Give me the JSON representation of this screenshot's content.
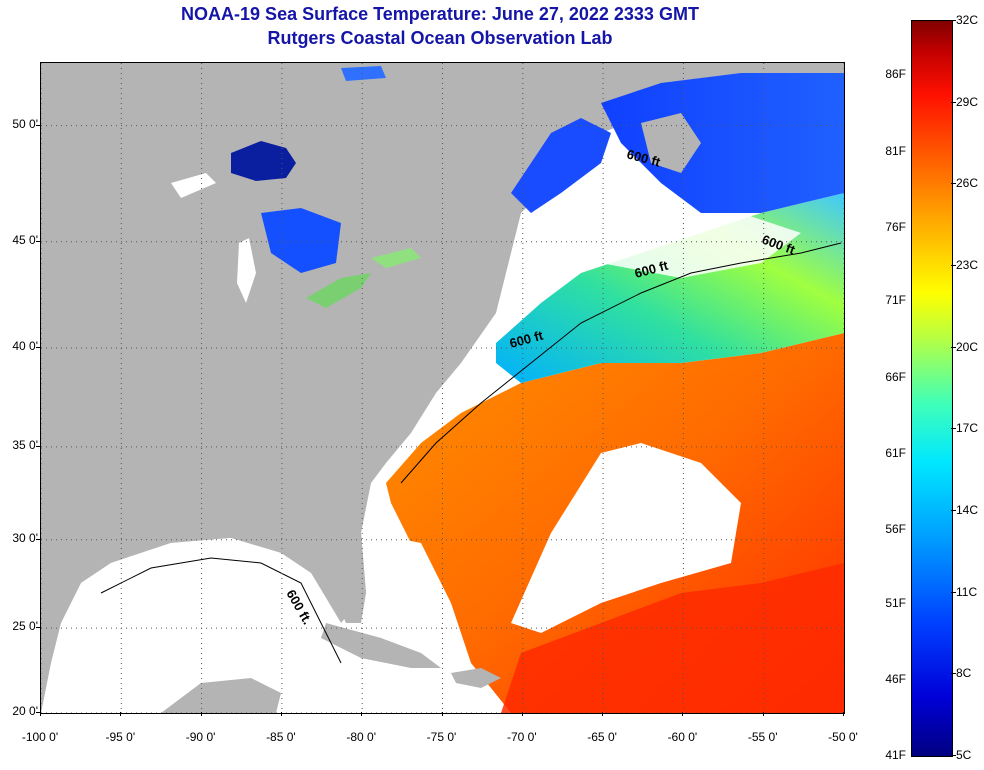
{
  "header": {
    "line1": "NOAA-19 Sea Surface Temperature:  June 27, 2022 2333 GMT",
    "line2": "Rutgers Coastal Ocean Observation Lab"
  },
  "map": {
    "lat_ticks": [
      {
        "label": "50 0'",
        "lat": 50
      },
      {
        "label": "45 0'",
        "lat": 45
      },
      {
        "label": "40 0'",
        "lat": 40
      },
      {
        "label": "35 0'",
        "lat": 35
      },
      {
        "label": "30 0'",
        "lat": 30
      },
      {
        "label": "25 0'",
        "lat": 25
      },
      {
        "label": "20 0'",
        "lat": 20
      }
    ],
    "lon_ticks": [
      {
        "label": "-100 0'",
        "lon": -100
      },
      {
        "label": "-95 0'",
        "lon": -95
      },
      {
        "label": "-90 0'",
        "lon": -90
      },
      {
        "label": "-85 0'",
        "lon": -85
      },
      {
        "label": "-80 0'",
        "lon": -80
      },
      {
        "label": "-75 0'",
        "lon": -75
      },
      {
        "label": "-70 0'",
        "lon": -70
      },
      {
        "label": "-65 0'",
        "lon": -65
      },
      {
        "label": "-60 0'",
        "lon": -60
      },
      {
        "label": "-55 0'",
        "lon": -55
      },
      {
        "label": "-50 0'",
        "lon": -50
      }
    ],
    "isobath_labels": [
      "600 ft",
      "600 ft",
      "600 ft",
      "600 ft",
      "600 ft."
    ],
    "colors": {
      "land": "#b4b4b4",
      "no_data": "#ffffff",
      "title": "#1515a8"
    }
  },
  "colorbar": {
    "fahrenheit": [
      {
        "label": "86F",
        "temp_c": 30.0
      },
      {
        "label": "81F",
        "temp_c": 27.2
      },
      {
        "label": "76F",
        "temp_c": 24.4
      },
      {
        "label": "71F",
        "temp_c": 21.7
      },
      {
        "label": "66F",
        "temp_c": 18.9
      },
      {
        "label": "61F",
        "temp_c": 16.1
      },
      {
        "label": "56F",
        "temp_c": 13.3
      },
      {
        "label": "51F",
        "temp_c": 10.6
      },
      {
        "label": "46F",
        "temp_c": 7.8
      },
      {
        "label": "41F",
        "temp_c": 5.0
      }
    ],
    "celsius": [
      {
        "label": "32C",
        "temp_c": 32
      },
      {
        "label": "29C",
        "temp_c": 29
      },
      {
        "label": "26C",
        "temp_c": 26
      },
      {
        "label": "23C",
        "temp_c": 23
      },
      {
        "label": "20C",
        "temp_c": 20
      },
      {
        "label": "17C",
        "temp_c": 17
      },
      {
        "label": "14C",
        "temp_c": 14
      },
      {
        "label": "11C",
        "temp_c": 11
      },
      {
        "label": "8C",
        "temp_c": 8
      },
      {
        "label": "5C",
        "temp_c": 5
      }
    ],
    "range_c": [
      5,
      32
    ]
  }
}
